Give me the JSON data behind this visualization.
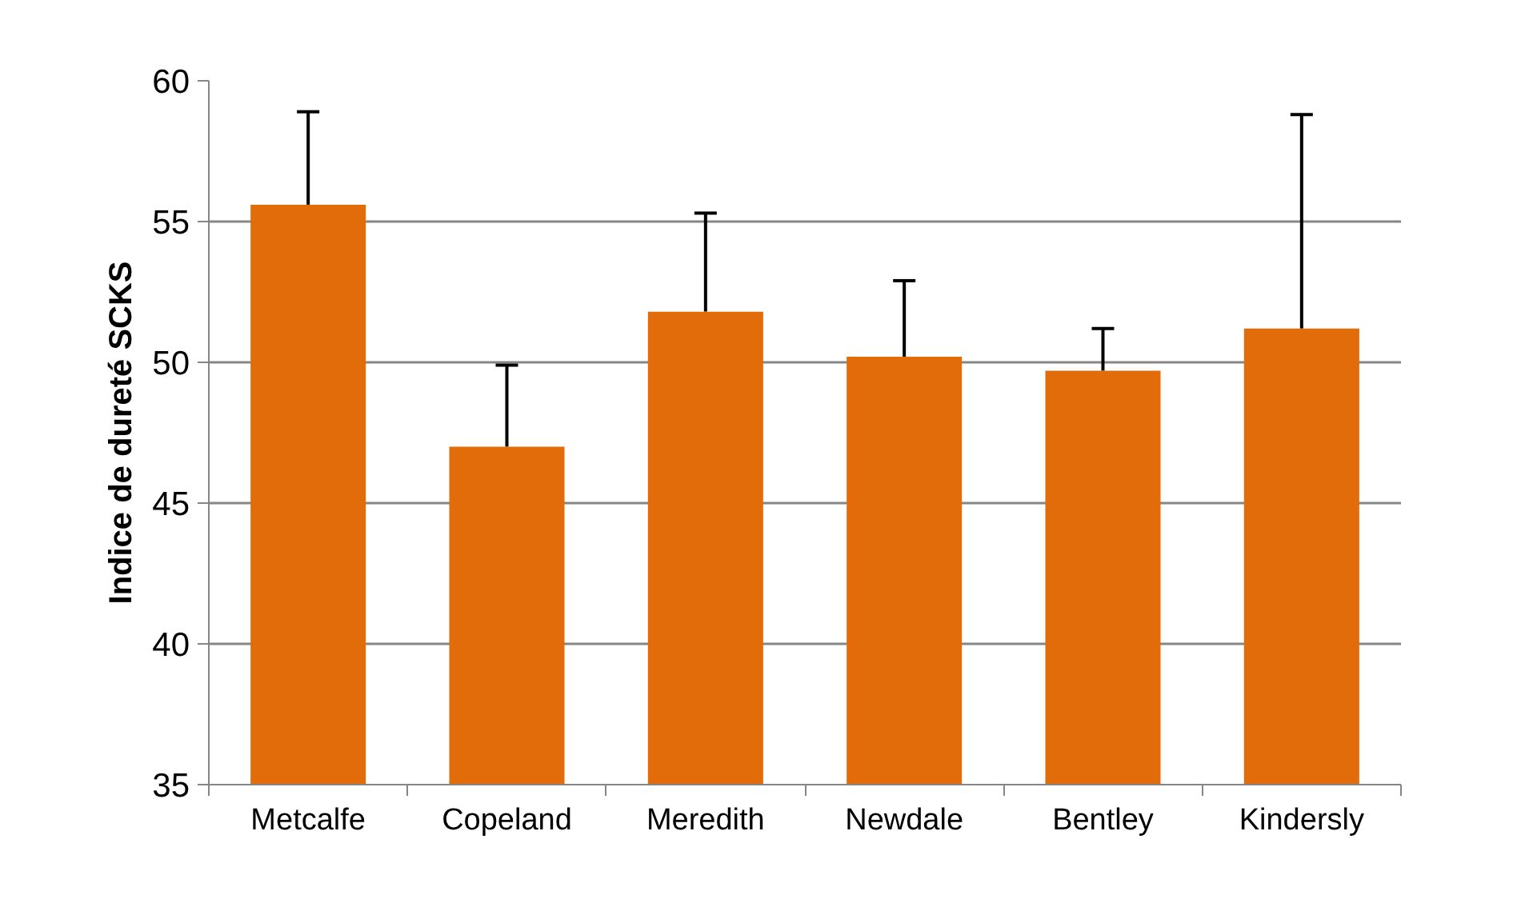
{
  "chart_data": {
    "type": "bar",
    "ylabel": "Indice de dureté SCKS",
    "categories": [
      "Metcalfe",
      "Copeland",
      "Meredith",
      "Newdale",
      "Bentley",
      "Kindersly"
    ],
    "values": [
      55.6,
      47.0,
      51.8,
      50.2,
      49.7,
      51.2
    ],
    "errors": [
      [
        55.6,
        58.9
      ],
      [
        47.0,
        49.9
      ],
      [
        51.8,
        55.3
      ],
      [
        50.2,
        52.9
      ],
      [
        49.7,
        51.2
      ],
      [
        51.2,
        58.8
      ]
    ],
    "color": "#e36c0a",
    "ylim": [
      35,
      60
    ],
    "yticks": [
      35,
      40,
      45,
      50,
      55,
      60
    ],
    "grid": "y"
  }
}
